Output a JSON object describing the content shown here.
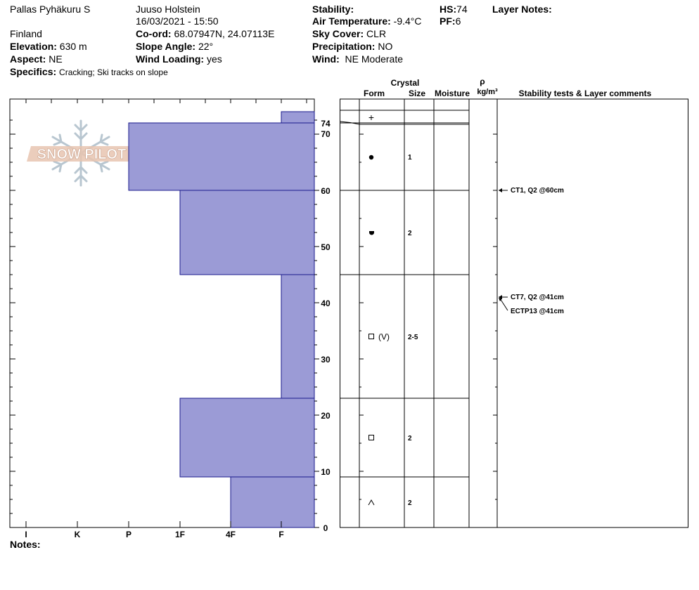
{
  "header": {
    "location": "Pallas Pyhäkuru S",
    "country": "Finland",
    "elevation_label": "Elevation:",
    "elevation_value": "630 m",
    "aspect_label": "Aspect:",
    "aspect_value": "NE",
    "specifics_label": "Specifics:",
    "specifics_value": "Cracking;  Ski tracks on slope",
    "observer": "Juuso Holstein",
    "datetime": "16/03/2021 - 15:50",
    "coord_label": "Co-ord:",
    "coord_value": "68.07947N, 24.07113E",
    "slope_label": "Slope Angle:",
    "slope_value": "22°",
    "wind_loading_label": "Wind Loading:",
    "wind_loading_value": "yes",
    "stability_label": "Stability:",
    "air_temp_label": "Air Temperature:",
    "air_temp_value": "-9.4°C",
    "sky_label": "Sky Cover:",
    "sky_value": "CLR",
    "precip_label": "Precipitation:",
    "precip_value": "NO",
    "wind_label": "Wind:",
    "wind_value": "NE Moderate",
    "hs_label": "HS:",
    "hs_value": "74",
    "pf_label": "PF:",
    "pf_value": "6",
    "layer_notes_label": "Layer Notes:",
    "notes_label": "Notes:"
  },
  "logo": {
    "text": "SNOW PILOT"
  },
  "columns": {
    "crystal": "Crystal",
    "form": "Form",
    "size": "Size",
    "moisture": "Moisture",
    "rho": "ρ",
    "density_unit": "kg/m³",
    "stability": "Stability tests & Layer comments"
  },
  "colors": {
    "layer_fill": "#9b9bd6",
    "layer_stroke": "#1a1a8c"
  },
  "chart_data": {
    "type": "bar",
    "orientation": "horizontal",
    "title": "",
    "xlabel": "",
    "ylabel": "",
    "hardness_scale": [
      "I",
      "K",
      "P",
      "1F",
      "4F",
      "F"
    ],
    "y_ticks": [
      0,
      10,
      20,
      30,
      40,
      50,
      60,
      70,
      74
    ],
    "ylim": [
      0,
      74
    ],
    "layers": [
      {
        "bottom": 72,
        "top": 74,
        "hardness": "F",
        "form": "+",
        "size": ""
      },
      {
        "bottom": 60,
        "top": 72,
        "hardness": "P",
        "form": "●",
        "size": "1"
      },
      {
        "bottom": 45,
        "top": 60,
        "hardness": "1F",
        "form": "melt-form",
        "size": "2"
      },
      {
        "bottom": 23,
        "top": 45,
        "hardness": "F",
        "form": "□ (V)",
        "size": "2-5"
      },
      {
        "bottom": 9,
        "top": 23,
        "hardness": "1F",
        "form": "□",
        "size": "2"
      },
      {
        "bottom": 0,
        "top": 9,
        "hardness": "4F",
        "form": "^",
        "size": "2"
      }
    ],
    "stability_tests": [
      {
        "depth": 60,
        "label": "CT1, Q2 @60cm"
      },
      {
        "depth": 41,
        "label": "CT7, Q2 @41cm"
      },
      {
        "depth": 41,
        "label": "ECTP13 @41cm"
      }
    ]
  }
}
